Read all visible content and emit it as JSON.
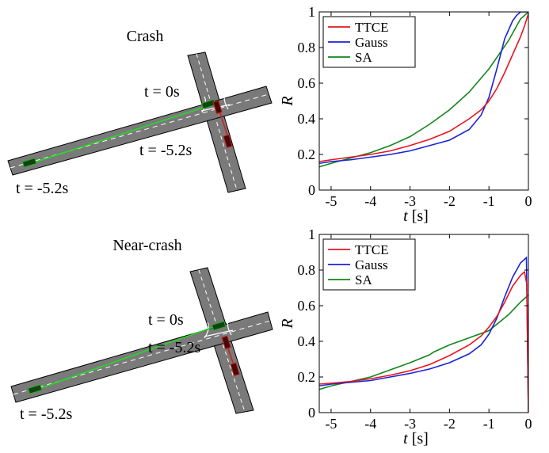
{
  "panels": [
    {
      "scene_title": "Crash",
      "time_labels": {
        "top": "t = 0s",
        "middle": "t = -5.2s",
        "bottom": "t = -5.2s"
      }
    },
    {
      "scene_title": "Near-crash",
      "time_labels": {
        "top": "t = 0s",
        "middle": "t = -5.2s",
        "bottom": "t = -5.2s"
      }
    }
  ],
  "colors": {
    "TTCE": "#e8141e",
    "Gauss": "#1a23d8",
    "SA": "#13851c",
    "road": "#7a7a7a",
    "ego_car": "#22aa22",
    "other_car": "#cc2020"
  },
  "chart_data": [
    {
      "type": "line",
      "title": "",
      "xlabel": "t [s]",
      "ylabel": "R",
      "xlim": [
        -5.3,
        0
      ],
      "ylim": [
        0,
        1
      ],
      "xticks": [
        "-5",
        "-4",
        "-3",
        "-2",
        "-1",
        "0"
      ],
      "yticks": [
        "0",
        "0.2",
        "0.4",
        "0.6",
        "0.8",
        "1"
      ],
      "legend_position": "top-left",
      "grid": false,
      "series": [
        {
          "name": "TTCE",
          "x": [
            -5.3,
            -5,
            -4.5,
            -4,
            -3.5,
            -3,
            -2.5,
            -2,
            -1.5,
            -1.2,
            -1,
            -0.8,
            -0.6,
            -0.4,
            -0.2,
            -0.1,
            0
          ],
          "y": [
            0.16,
            0.17,
            0.185,
            0.2,
            0.22,
            0.25,
            0.285,
            0.33,
            0.4,
            0.45,
            0.5,
            0.57,
            0.66,
            0.76,
            0.86,
            0.92,
            0.99
          ]
        },
        {
          "name": "Gauss",
          "x": [
            -5.3,
            -5,
            -4.5,
            -4,
            -3.5,
            -3,
            -2.5,
            -2,
            -1.5,
            -1.2,
            -1,
            -0.8,
            -0.6,
            -0.4,
            -0.3,
            -0.2,
            0
          ],
          "y": [
            0.15,
            0.16,
            0.17,
            0.185,
            0.2,
            0.22,
            0.25,
            0.28,
            0.34,
            0.42,
            0.52,
            0.68,
            0.85,
            0.95,
            0.98,
            1.0,
            1.0
          ]
        },
        {
          "name": "SA",
          "x": [
            -5.3,
            -5,
            -4.5,
            -4,
            -3.5,
            -3,
            -2.5,
            -2,
            -1.5,
            -1,
            -0.5,
            -0.2,
            0
          ],
          "y": [
            0.13,
            0.15,
            0.18,
            0.21,
            0.25,
            0.3,
            0.37,
            0.45,
            0.55,
            0.68,
            0.84,
            0.96,
            1.0
          ]
        }
      ]
    },
    {
      "type": "line",
      "title": "",
      "xlabel": "t [s]",
      "ylabel": "R",
      "xlim": [
        -5.3,
        0
      ],
      "ylim": [
        0,
        1
      ],
      "xticks": [
        "-5",
        "-4",
        "-3",
        "-2",
        "-1",
        "0"
      ],
      "yticks": [
        "0",
        "0.2",
        "0.4",
        "0.6",
        "0.8",
        "1"
      ],
      "legend_position": "top-left",
      "grid": false,
      "series": [
        {
          "name": "TTCE",
          "x": [
            -5.3,
            -5,
            -4.5,
            -4,
            -3.5,
            -3,
            -2.5,
            -2,
            -1.5,
            -1.2,
            -1,
            -0.8,
            -0.6,
            -0.4,
            -0.2,
            -0.1,
            -0.04,
            0
          ],
          "y": [
            0.16,
            0.165,
            0.175,
            0.19,
            0.21,
            0.235,
            0.27,
            0.32,
            0.38,
            0.43,
            0.48,
            0.54,
            0.62,
            0.71,
            0.77,
            0.79,
            0.72,
            0.0
          ]
        },
        {
          "name": "Gauss",
          "x": [
            -5.3,
            -5,
            -4.5,
            -4,
            -3.5,
            -3,
            -2.5,
            -2,
            -1.5,
            -1.2,
            -1,
            -0.8,
            -0.6,
            -0.4,
            -0.2,
            -0.05,
            0
          ],
          "y": [
            0.15,
            0.16,
            0.17,
            0.18,
            0.2,
            0.22,
            0.245,
            0.28,
            0.33,
            0.38,
            0.44,
            0.53,
            0.65,
            0.76,
            0.84,
            0.87,
            0.0
          ]
        },
        {
          "name": "SA",
          "x": [
            -5.3,
            -5,
            -4.5,
            -4,
            -3.5,
            -3,
            -2.5,
            -2.4,
            -2,
            -1.5,
            -1,
            -0.5,
            -0.2,
            0
          ],
          "y": [
            0.13,
            0.15,
            0.175,
            0.2,
            0.24,
            0.28,
            0.325,
            0.34,
            0.38,
            0.42,
            0.46,
            0.55,
            0.62,
            0.66
          ]
        }
      ]
    }
  ]
}
